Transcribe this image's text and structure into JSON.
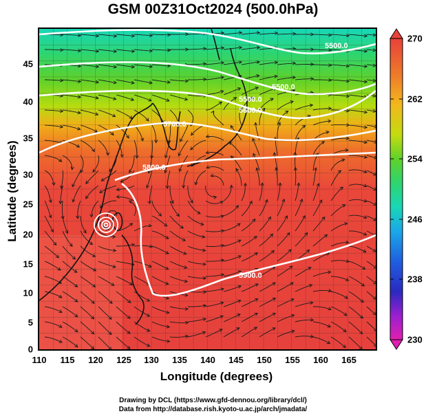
{
  "title": "GSM 00Z31Oct2024 (500.0hPa)",
  "axes": {
    "xlabel": "Longitude (degrees)",
    "ylabel": "Latitude  (degrees)",
    "xticks": [
      "110",
      "115",
      "120",
      "125",
      "130",
      "135",
      "140",
      "145",
      "150",
      "155",
      "160",
      "165"
    ],
    "yticks": [
      "0",
      "5",
      "10",
      "15",
      "20",
      "25",
      "30",
      "35",
      "40",
      "45"
    ]
  },
  "colorbar": {
    "ticks": [
      "270",
      "262",
      "254",
      "246",
      "238",
      "230"
    ],
    "min": 230,
    "max": 270
  },
  "contour_labels": [
    "5500.0",
    "5500.0",
    "5500.0",
    "5600.0",
    "5700.0",
    "5800.0",
    "5900.0"
  ],
  "credits": {
    "line1": "Drawing by DCL (https://www.gfd-dennou.org/library/dcl/)",
    "line2": "Data from http://database.rish.kyoto-u.ac.jp/arch/jmadata/"
  },
  "map": {
    "lon_range": [
      110,
      170
    ],
    "lat_range": [
      0,
      50
    ],
    "typhoon_center": {
      "lon": 122,
      "lat": 20.5
    },
    "high_center": {
      "lon": 142,
      "lat": 24.5
    }
  },
  "colors": {
    "background_field": "#e8423a",
    "contour": "#ffffff"
  }
}
